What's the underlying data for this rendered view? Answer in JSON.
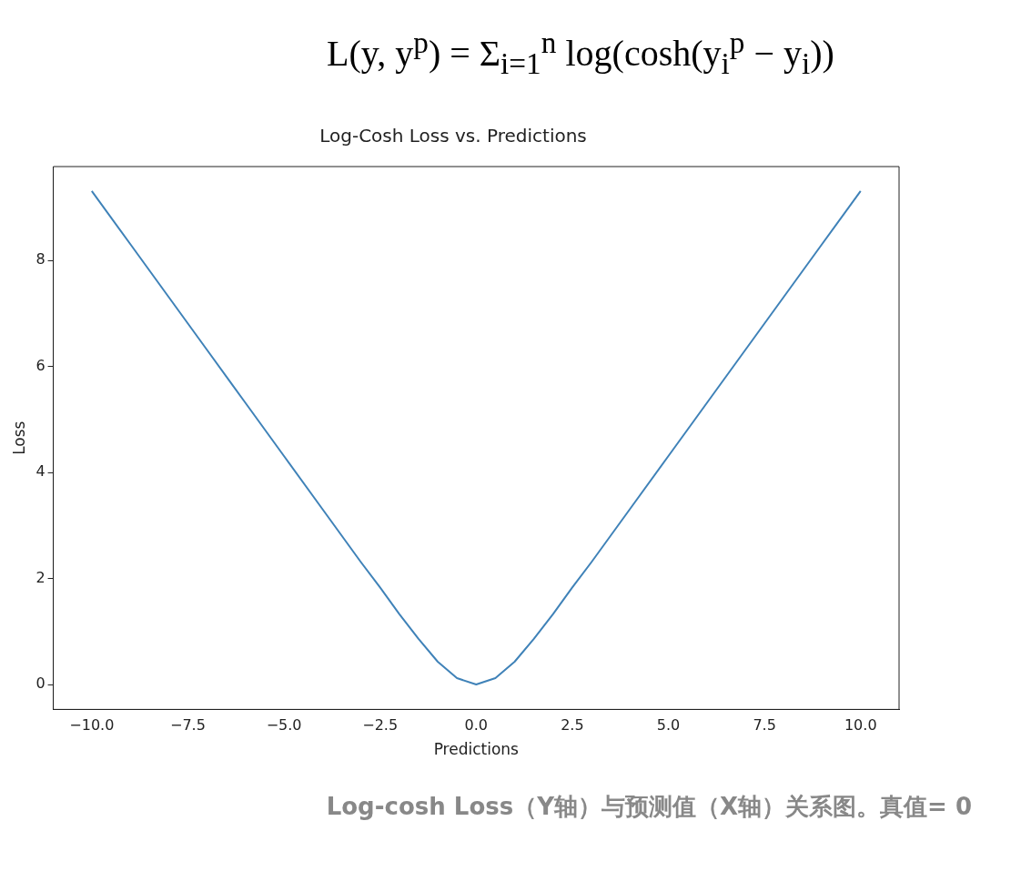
{
  "chart_data": {
    "type": "line",
    "title": "Log-Cosh Loss vs. Predictions",
    "xlabel": "Predictions",
    "ylabel": "Loss",
    "annotations": [
      "L(y, y$^{p}$) = Σ$_{i=1}$$^{n}$ log(cosh(y$_{i}$$^{p}$ − y$_{i}$))",
      "Log-cosh Loss（Y轴）与预测值（X轴）关系图。真值= 0"
    ],
    "x": [
      -10,
      -9,
      -8,
      -7,
      -6,
      -5,
      -4,
      -3,
      -2.5,
      -2,
      -1.5,
      -1,
      -0.5,
      0,
      0.5,
      1,
      1.5,
      2,
      2.5,
      3,
      4,
      5,
      6,
      7,
      8,
      9,
      10
    ],
    "series": [
      {
        "color": "#3f82b8",
        "values": [
          9.31,
          8.31,
          7.31,
          6.31,
          5.31,
          4.31,
          3.31,
          2.31,
          1.83,
          1.33,
          0.86,
          0.43,
          0.12,
          0,
          0.12,
          0.43,
          0.86,
          1.33,
          1.83,
          2.31,
          3.31,
          4.31,
          5.31,
          6.31,
          7.31,
          8.31,
          9.31
        ]
      }
    ],
    "xlim": [
      -11,
      11
    ],
    "ylim": [
      -0.47,
      9.77
    ],
    "xticks": [
      {
        "value": -10,
        "label": "−10.0"
      },
      {
        "value": -7.5,
        "label": "−7.5"
      },
      {
        "value": -5,
        "label": "−5.0"
      },
      {
        "value": -2.5,
        "label": "−2.5"
      },
      {
        "value": 0,
        "label": "0.0"
      },
      {
        "value": 2.5,
        "label": "2.5"
      },
      {
        "value": 5,
        "label": "5.0"
      },
      {
        "value": 7.5,
        "label": "7.5"
      },
      {
        "value": 10,
        "label": "10.0"
      }
    ],
    "yticks": [
      0,
      2,
      4,
      6,
      8
    ],
    "grid": false,
    "legend": false,
    "marker": "none",
    "line_style": "solid"
  }
}
